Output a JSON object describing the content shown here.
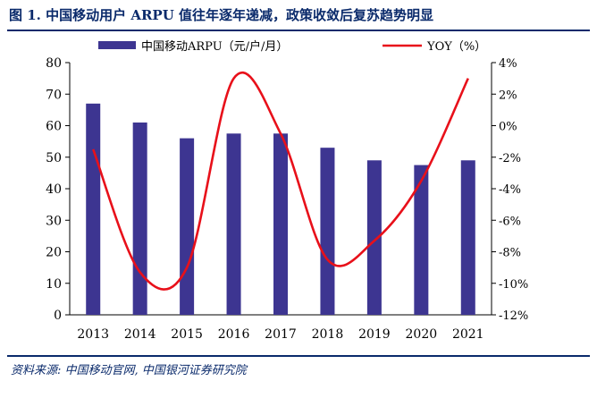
{
  "figure": {
    "title": "图 1.  中国移动用户 ARPU 值往年逐年递减，政策收敛后复苏趋势明显",
    "source": "资料来源:  中国移动官网,  中国银河证券研究院"
  },
  "chart_data": {
    "type": "bar+line",
    "categories": [
      "2013",
      "2014",
      "2015",
      "2016",
      "2017",
      "2018",
      "2019",
      "2020",
      "2021"
    ],
    "series": [
      {
        "name": "中国移动ARPU（元/户/月）",
        "type": "bar",
        "axis": "left",
        "color": "#3d3591",
        "values": [
          67,
          61,
          56,
          57.5,
          57.5,
          53,
          49,
          47.5,
          49
        ]
      },
      {
        "name": "YOY（%）",
        "type": "line",
        "axis": "right",
        "color": "#e8101a",
        "values": [
          -1.5,
          -9.3,
          -9.0,
          3.0,
          -0.5,
          -8.5,
          -7.3,
          -3.5,
          3.0
        ]
      }
    ],
    "y_left": {
      "min": 0,
      "max": 80,
      "ticks": [
        "0",
        "10",
        "20",
        "30",
        "40",
        "50",
        "60",
        "70",
        "80"
      ]
    },
    "y_right": {
      "min": -12,
      "max": 4,
      "ticks": [
        "-12%",
        "-10%",
        "-8%",
        "-6%",
        "-4%",
        "-2%",
        "0%",
        "2%",
        "4%"
      ]
    },
    "grid": false,
    "legend_position": "top"
  }
}
